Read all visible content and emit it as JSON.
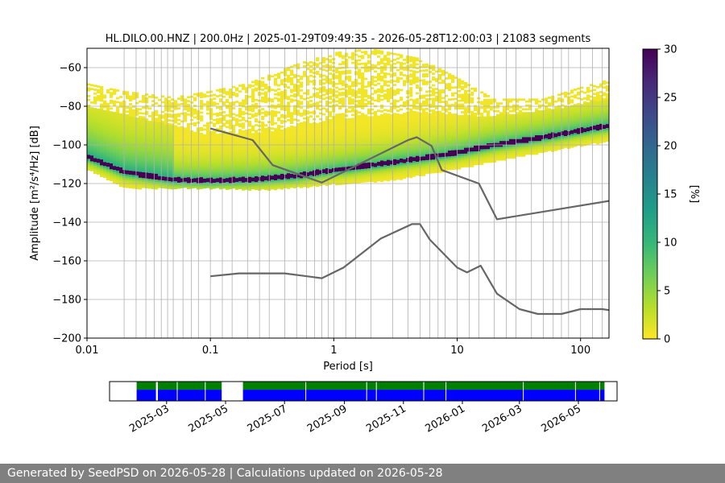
{
  "chart_data": [
    {
      "type": "heatmap",
      "title": "HL.DILO.00.HNZ | 200.0Hz | 2025-01-29T09:49:35 - 2026-05-28T12:00:03 | 21083 segments",
      "xlabel": "Period [s]",
      "ylabel": "Amplitude [m²/s⁴/Hz] [dB]",
      "xscale": "log",
      "xlim": [
        0.01,
        170
      ],
      "ylim": [
        -200,
        -50
      ],
      "grid": true,
      "x_ticks": [
        {
          "value": 0.01,
          "label": "0.01"
        },
        {
          "value": 0.1,
          "label": "0.1"
        },
        {
          "value": 1,
          "label": "1"
        },
        {
          "value": 10,
          "label": "10"
        },
        {
          "value": 100,
          "label": "100"
        }
      ],
      "y_ticks": [
        {
          "value": -60,
          "label": "−60"
        },
        {
          "value": -80,
          "label": "−80"
        },
        {
          "value": -100,
          "label": "−100"
        },
        {
          "value": -120,
          "label": "−120"
        },
        {
          "value": -140,
          "label": "−140"
        },
        {
          "value": -160,
          "label": "−160"
        },
        {
          "value": -180,
          "label": "−180"
        },
        {
          "value": -200,
          "label": "−200"
        }
      ],
      "period_gridlines": [
        0.02,
        0.025,
        0.03,
        0.035,
        0.04,
        0.045,
        0.05,
        0.06,
        0.07,
        0.08,
        0.1,
        0.125,
        0.15,
        0.2,
        0.25,
        0.3,
        0.4,
        0.5,
        0.6,
        0.7,
        0.8,
        0.9,
        1,
        1.25,
        1.5,
        2,
        3,
        4,
        5,
        6,
        7,
        8,
        10,
        12.5,
        15,
        20,
        25,
        30,
        40,
        50,
        60,
        70,
        80,
        100,
        125,
        150
      ],
      "psd_density": {
        "upper_envelope": [
          [
            0.01,
            -68
          ],
          [
            0.02,
            -72
          ],
          [
            0.05,
            -75
          ],
          [
            0.1,
            -72
          ],
          [
            0.2,
            -68
          ],
          [
            0.5,
            -58
          ],
          [
            1,
            -52
          ],
          [
            2,
            -50
          ],
          [
            5,
            -55
          ],
          [
            10,
            -65
          ],
          [
            20,
            -76
          ],
          [
            50,
            -76
          ],
          [
            100,
            -70
          ],
          [
            170,
            -66
          ]
        ],
        "body_upper": [
          [
            0.01,
            -80
          ],
          [
            0.05,
            -90
          ],
          [
            0.1,
            -95
          ],
          [
            0.3,
            -93
          ],
          [
            0.6,
            -89
          ],
          [
            1,
            -87
          ],
          [
            3,
            -84
          ],
          [
            5,
            -83
          ],
          [
            8,
            -84
          ],
          [
            15,
            -85
          ],
          [
            30,
            -84
          ],
          [
            80,
            -80
          ],
          [
            170,
            -76
          ]
        ],
        "mode": [
          [
            0.01,
            -106
          ],
          [
            0.02,
            -114
          ],
          [
            0.05,
            -118
          ],
          [
            0.1,
            -118.5
          ],
          [
            0.2,
            -118
          ],
          [
            0.5,
            -116
          ],
          [
            1,
            -113
          ],
          [
            2,
            -110.5
          ],
          [
            5,
            -107
          ],
          [
            10,
            -104
          ],
          [
            20,
            -100
          ],
          [
            50,
            -96
          ],
          [
            100,
            -92.5
          ],
          [
            170,
            -90
          ]
        ],
        "lower_envelope": [
          [
            0.01,
            -112
          ],
          [
            0.02,
            -122
          ],
          [
            0.1,
            -122
          ],
          [
            0.3,
            -123
          ],
          [
            1,
            -120
          ],
          [
            3,
            -118
          ],
          [
            10,
            -112
          ],
          [
            30,
            -106
          ],
          [
            100,
            -100
          ],
          [
            170,
            -98
          ]
        ]
      },
      "noise_models": [
        {
          "type": "line",
          "color": "#666666",
          "points": [
            [
              0.1,
              -91.5
            ],
            [
              0.22,
              -97.5
            ],
            [
              0.32,
              -110.5
            ],
            [
              0.8,
              -119.5
            ],
            [
              4,
              -97.5
            ],
            [
              4.7,
              -96
            ],
            [
              6.2,
              -100.5
            ],
            [
              7.5,
              -113
            ],
            [
              15,
              -120
            ],
            [
              21,
              -138.5
            ],
            [
              170,
              -129
            ]
          ]
        },
        {
          "type": "line",
          "color": "#666666",
          "points": [
            [
              0.1,
              -168
            ],
            [
              0.17,
              -166.5
            ],
            [
              0.4,
              -166.5
            ],
            [
              0.8,
              -169
            ],
            [
              1.2,
              -163.5
            ],
            [
              2.4,
              -148.5
            ],
            [
              4.3,
              -141
            ],
            [
              5,
              -141
            ],
            [
              6,
              -149
            ],
            [
              10,
              -163.5
            ],
            [
              12,
              -166
            ],
            [
              15.5,
              -162.5
            ],
            [
              21,
              -177
            ],
            [
              32,
              -185
            ],
            [
              45,
              -187.5
            ],
            [
              70,
              -187.5
            ],
            [
              100,
              -185
            ],
            [
              150,
              -185
            ],
            [
              170,
              -185.5
            ]
          ]
        }
      ],
      "colorbar": {
        "label": "[%]",
        "min": 0,
        "max": 30,
        "ticks": [
          "0",
          "5",
          "10",
          "15",
          "20",
          "25",
          "30"
        ],
        "colors": [
          "#fde725",
          "#b5de2b",
          "#6ece58",
          "#35b779",
          "#1f9e89",
          "#26828e",
          "#31688e",
          "#3e4989",
          "#482878",
          "#440154"
        ]
      }
    },
    {
      "type": "timeline",
      "x_ticks": [
        "2025-03",
        "2025-05",
        "2025-07",
        "2025-09",
        "2025-11",
        "2026-01",
        "2026-03",
        "2026-05"
      ],
      "x_tick_dates": [
        "2025-03-01",
        "2025-05-01",
        "2025-07-01",
        "2025-09-01",
        "2025-11-01",
        "2026-01-01",
        "2026-03-01",
        "2026-05-01"
      ],
      "xlim_dates": [
        "2025-01-01",
        "2026-06-10"
      ],
      "top_band_color": "#008000",
      "bottom_band_color": "#0000ff",
      "coverage_intervals": [
        [
          "2025-01-29",
          "2025-02-18"
        ],
        [
          "2025-02-20",
          "2025-04-27"
        ],
        [
          "2025-05-19",
          "2026-05-28"
        ]
      ],
      "coverage_gaps": [
        "2025-03-12",
        "2025-04-10",
        "2025-07-23",
        "2025-09-24",
        "2025-10-04",
        "2025-11-22",
        "2025-12-15",
        "2026-03-05",
        "2026-04-28",
        "2026-05-23"
      ]
    }
  ],
  "footer": {
    "text": "Generated by SeedPSD on 2026-05-28 | Calculations updated on 2026-05-28"
  }
}
